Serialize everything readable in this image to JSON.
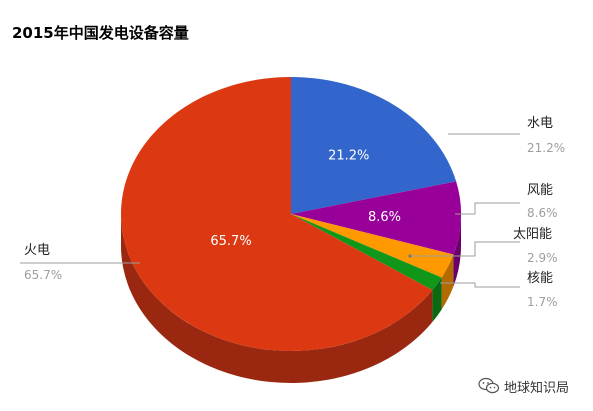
{
  "title": "2015年中国发电设备容量",
  "chart_data": {
    "type": "pie",
    "title": "2015年中国发电设备容量",
    "categories": [
      "水电",
      "风能",
      "太阳能",
      "核能",
      "火电"
    ],
    "values": [
      21.2,
      8.6,
      2.9,
      1.7,
      65.7
    ],
    "value_labels": [
      "21.2%",
      "8.6%",
      "2.9%",
      "1.7%",
      "65.7%"
    ],
    "inside_labels": [
      "21.2%",
      "8.6%",
      "",
      "",
      "65.7%"
    ],
    "colors": [
      "#3366cc",
      "#990099",
      "#ff9900",
      "#109618",
      "#dc3912"
    ],
    "side_colors": [
      "#24478f",
      "#6b006b",
      "#b36b00",
      "#0b6911",
      "#9a2810"
    ],
    "start_angle_deg": 0,
    "direction": "clockwise",
    "three_d": true,
    "legend": "labeled-leader-lines"
  },
  "watermark": {
    "text": "地球知识局",
    "icon": "wechat-icon"
  }
}
